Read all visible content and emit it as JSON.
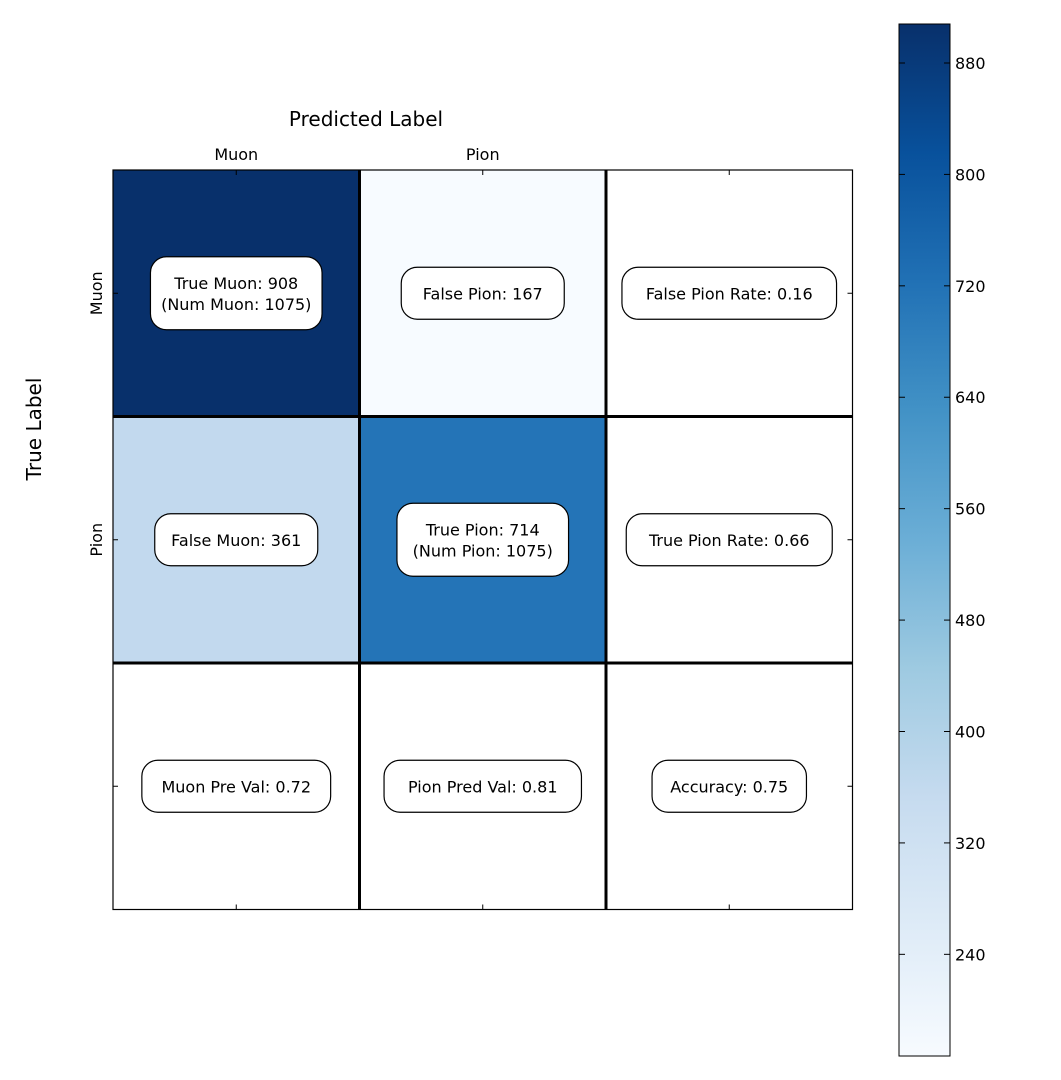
{
  "chart_data": {
    "type": "heatmap",
    "xlabel": "Predicted Label",
    "ylabel": "True Label",
    "x_tick_labels": [
      "Muon",
      "Pion",
      ""
    ],
    "y_tick_labels": [
      "Muon",
      "Pion",
      ""
    ],
    "colormap": "Blues",
    "color_range": [
      167,
      908
    ],
    "colorbar_ticks": [
      240,
      320,
      400,
      480,
      560,
      640,
      720,
      800,
      880
    ],
    "cells": [
      [
        {
          "value": 908,
          "label_lines": [
            "True Muon: 908",
            "(Num Muon: 1075)"
          ]
        },
        {
          "value": 167,
          "label_lines": [
            "False Pion: 167"
          ]
        },
        {
          "value": null,
          "label_lines": [
            "False Pion Rate: 0.16"
          ]
        }
      ],
      [
        {
          "value": 361,
          "label_lines": [
            "False Muon: 361"
          ]
        },
        {
          "value": 714,
          "label_lines": [
            "True Pion: 714",
            "(Num Pion: 1075)"
          ]
        },
        {
          "value": null,
          "label_lines": [
            "True Pion Rate: 0.66"
          ]
        }
      ],
      [
        {
          "value": null,
          "label_lines": [
            "Muon Pre Val: 0.72"
          ]
        },
        {
          "value": null,
          "label_lines": [
            "Pion Pred Val: 0.81"
          ]
        },
        {
          "value": null,
          "label_lines": [
            "Accuracy: 0.75"
          ]
        }
      ]
    ]
  }
}
